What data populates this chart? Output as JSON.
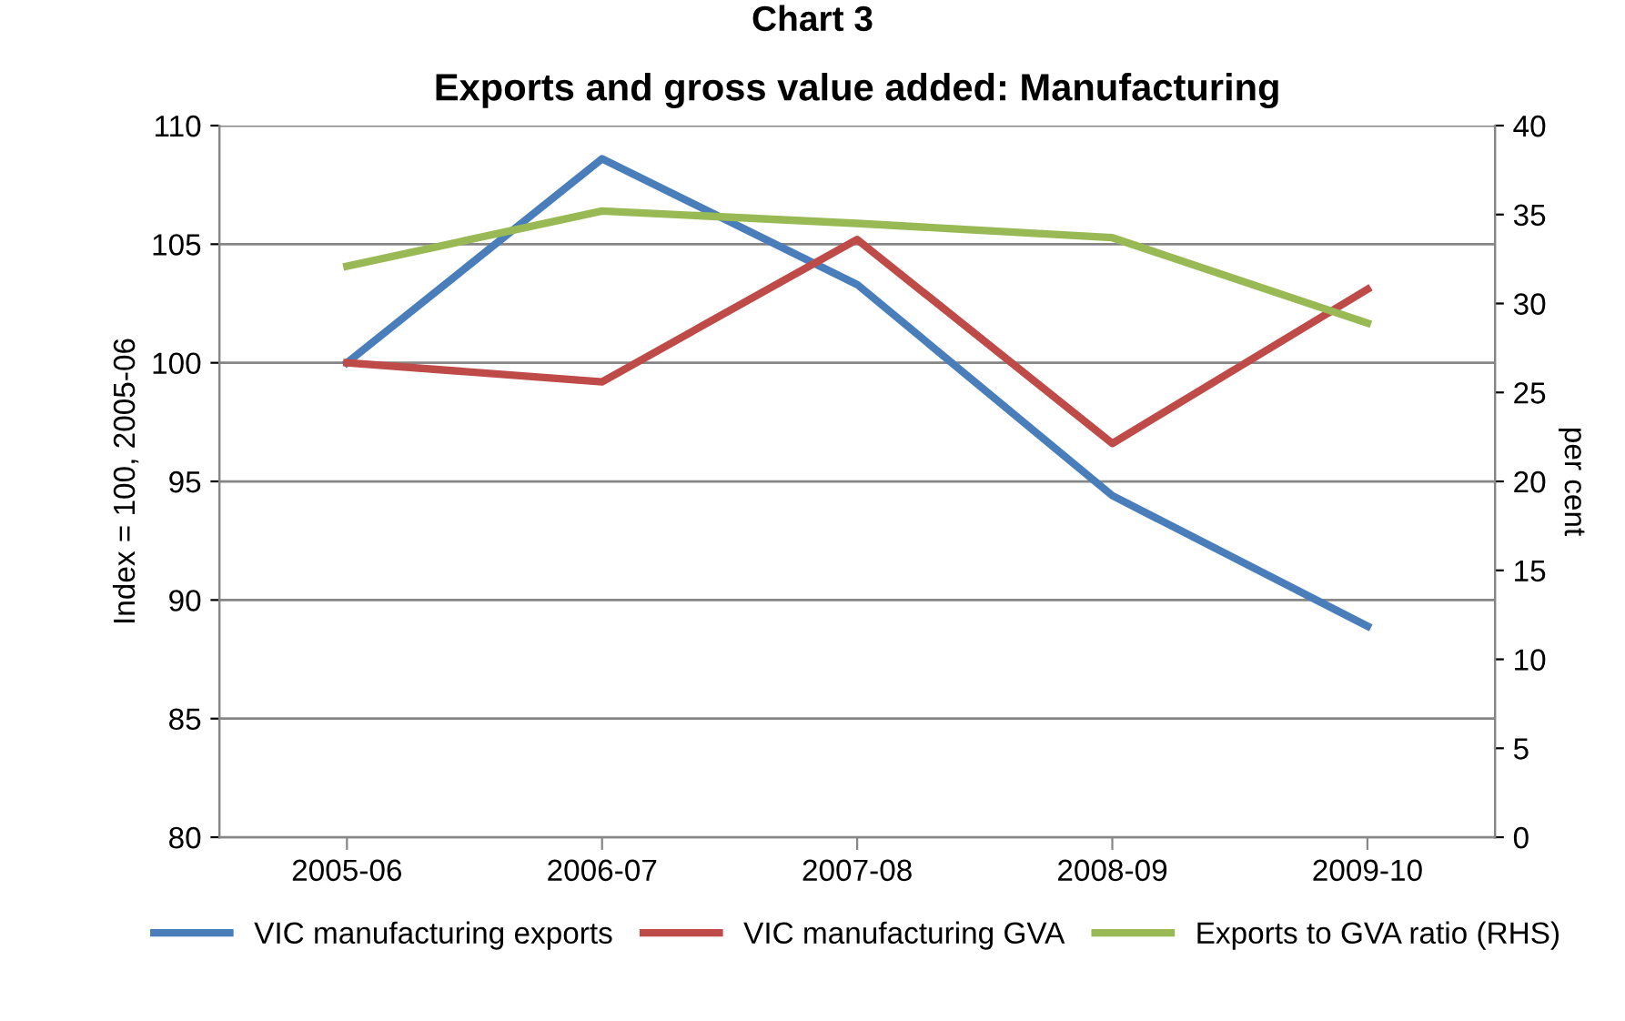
{
  "chart_data": {
    "type": "line",
    "title": "Exports and gross value added: Manufacturing",
    "annotations": [
      "Chart 3"
    ],
    "ylabel": "Index = 100, 2005-06",
    "y2label": "per cent",
    "categories": [
      "2005-06",
      "2006-07",
      "2007-08",
      "2008-09",
      "2009-10"
    ],
    "series": [
      {
        "name": "VIC manufacturing exports",
        "color": "#4a7ebb",
        "values": [
          100,
          108.6,
          103.3,
          94.4,
          88.9
        ]
      },
      {
        "name": "VIC manufacturing GVA",
        "color": "#be4b48",
        "values": [
          100,
          99.2,
          105.2,
          96.6,
          103.1
        ]
      },
      {
        "name": "Exports to GVA ratio (RHS)",
        "color": "#98b954",
        "axis": "y2",
        "values": [
          32.1,
          35.2,
          34.5,
          33.7,
          28.9
        ]
      }
    ],
    "ylim": [
      80,
      110
    ],
    "yticks": [
      80,
      85,
      90,
      95,
      100,
      105,
      110
    ],
    "y2lim": [
      0,
      40
    ],
    "y2ticks": [
      0,
      5,
      10,
      15,
      20,
      25,
      30,
      35,
      40
    ],
    "grid": "y",
    "legend": "bottom",
    "marker": "none",
    "line_style": "solid"
  }
}
